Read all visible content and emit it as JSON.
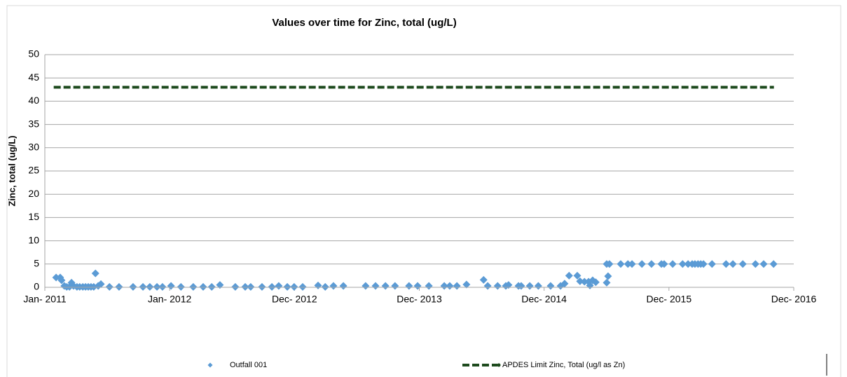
{
  "chart_data": {
    "type": "scatter",
    "title": "Values over time for Zinc, total (ug/L)",
    "y_label": "Zinc, total (ug/L)",
    "xlim": [
      40544,
      42734
    ],
    "xticks": [
      {
        "value": 40544,
        "label": "Jan- 2011"
      },
      {
        "value": 40909,
        "label": "Jan- 2012"
      },
      {
        "value": 41274,
        "label": "Dec- 2012"
      },
      {
        "value": 41639,
        "label": "Dec- 2013"
      },
      {
        "value": 42004,
        "label": "Dec- 2014"
      },
      {
        "value": 42369,
        "label": "Dec- 2015"
      },
      {
        "value": 42734,
        "label": "Dec- 2016"
      }
    ],
    "ylim": [
      0,
      50
    ],
    "yticks": [
      0,
      5,
      10,
      15,
      20,
      25,
      30,
      35,
      40,
      45,
      50
    ],
    "grid": true,
    "legend": "bottom",
    "series": [
      {
        "name": "Outfall 001",
        "color": "#5b9bd5",
        "marker": "diamond",
        "x": [
          40577,
          40589,
          40593,
          40601,
          40608,
          40616,
          40622,
          40628,
          40638,
          40646,
          40655,
          40663,
          40671,
          40679,
          40687,
          40692,
          40700,
          40708,
          40733,
          40761,
          40802,
          40831,
          40851,
          40872,
          40888,
          40913,
          40942,
          40978,
          41007,
          41032,
          41056,
          41101,
          41130,
          41146,
          41179,
          41208,
          41228,
          41253,
          41273,
          41298,
          41343,
          41364,
          41388,
          41417,
          41482,
          41511,
          41540,
          41568,
          41609,
          41634,
          41667,
          41712,
          41728,
          41749,
          41777,
          41827,
          41839,
          41868,
          41892,
          41900,
          41929,
          41937,
          41962,
          41987,
          42023,
          42052,
          42064,
          42077,
          42101,
          42109,
          42122,
          42134,
          42138,
          42146,
          42155,
          42187,
          42187,
          42191,
          42195,
          42228,
          42249,
          42261,
          42290,
          42318,
          42347,
          42355,
          42380,
          42409,
          42425,
          42437,
          42445,
          42454,
          42462,
          42470,
          42495,
          42536,
          42556,
          42585,
          42622,
          42646,
          42675
        ],
        "values": [
          2.1,
          2.1,
          1.5,
          0.3,
          0.1,
          0.1,
          1.0,
          0.3,
          0.1,
          0.1,
          0.1,
          0.1,
          0.1,
          0.1,
          0.1,
          3.0,
          0.3,
          0.7,
          0.1,
          0.1,
          0.1,
          0.1,
          0.1,
          0.1,
          0.1,
          0.3,
          0.1,
          0.1,
          0.1,
          0.1,
          0.5,
          0.1,
          0.1,
          0.1,
          0.1,
          0.1,
          0.3,
          0.1,
          0.1,
          0.1,
          0.4,
          0.1,
          0.3,
          0.3,
          0.3,
          0.3,
          0.3,
          0.3,
          0.3,
          0.3,
          0.3,
          0.3,
          0.3,
          0.3,
          0.6,
          1.6,
          0.3,
          0.3,
          0.3,
          0.5,
          0.3,
          0.3,
          0.3,
          0.3,
          0.3,
          0.3,
          0.8,
          2.5,
          2.5,
          1.3,
          1.2,
          1.2,
          0.4,
          1.5,
          1.1,
          5.0,
          1.0,
          2.4,
          5.0,
          5,
          5,
          5,
          5,
          5,
          5,
          5,
          5,
          5,
          5,
          5,
          5,
          5,
          5,
          5,
          5,
          5,
          5,
          5,
          5,
          5,
          5
        ]
      },
      {
        "name": "APDES Limit Zinc, Total (ug/l as Zn)",
        "color": "#1d4a1d",
        "marker": "dashed-line",
        "x": [
          40570,
          42676
        ],
        "values": [
          43,
          43
        ]
      }
    ]
  }
}
